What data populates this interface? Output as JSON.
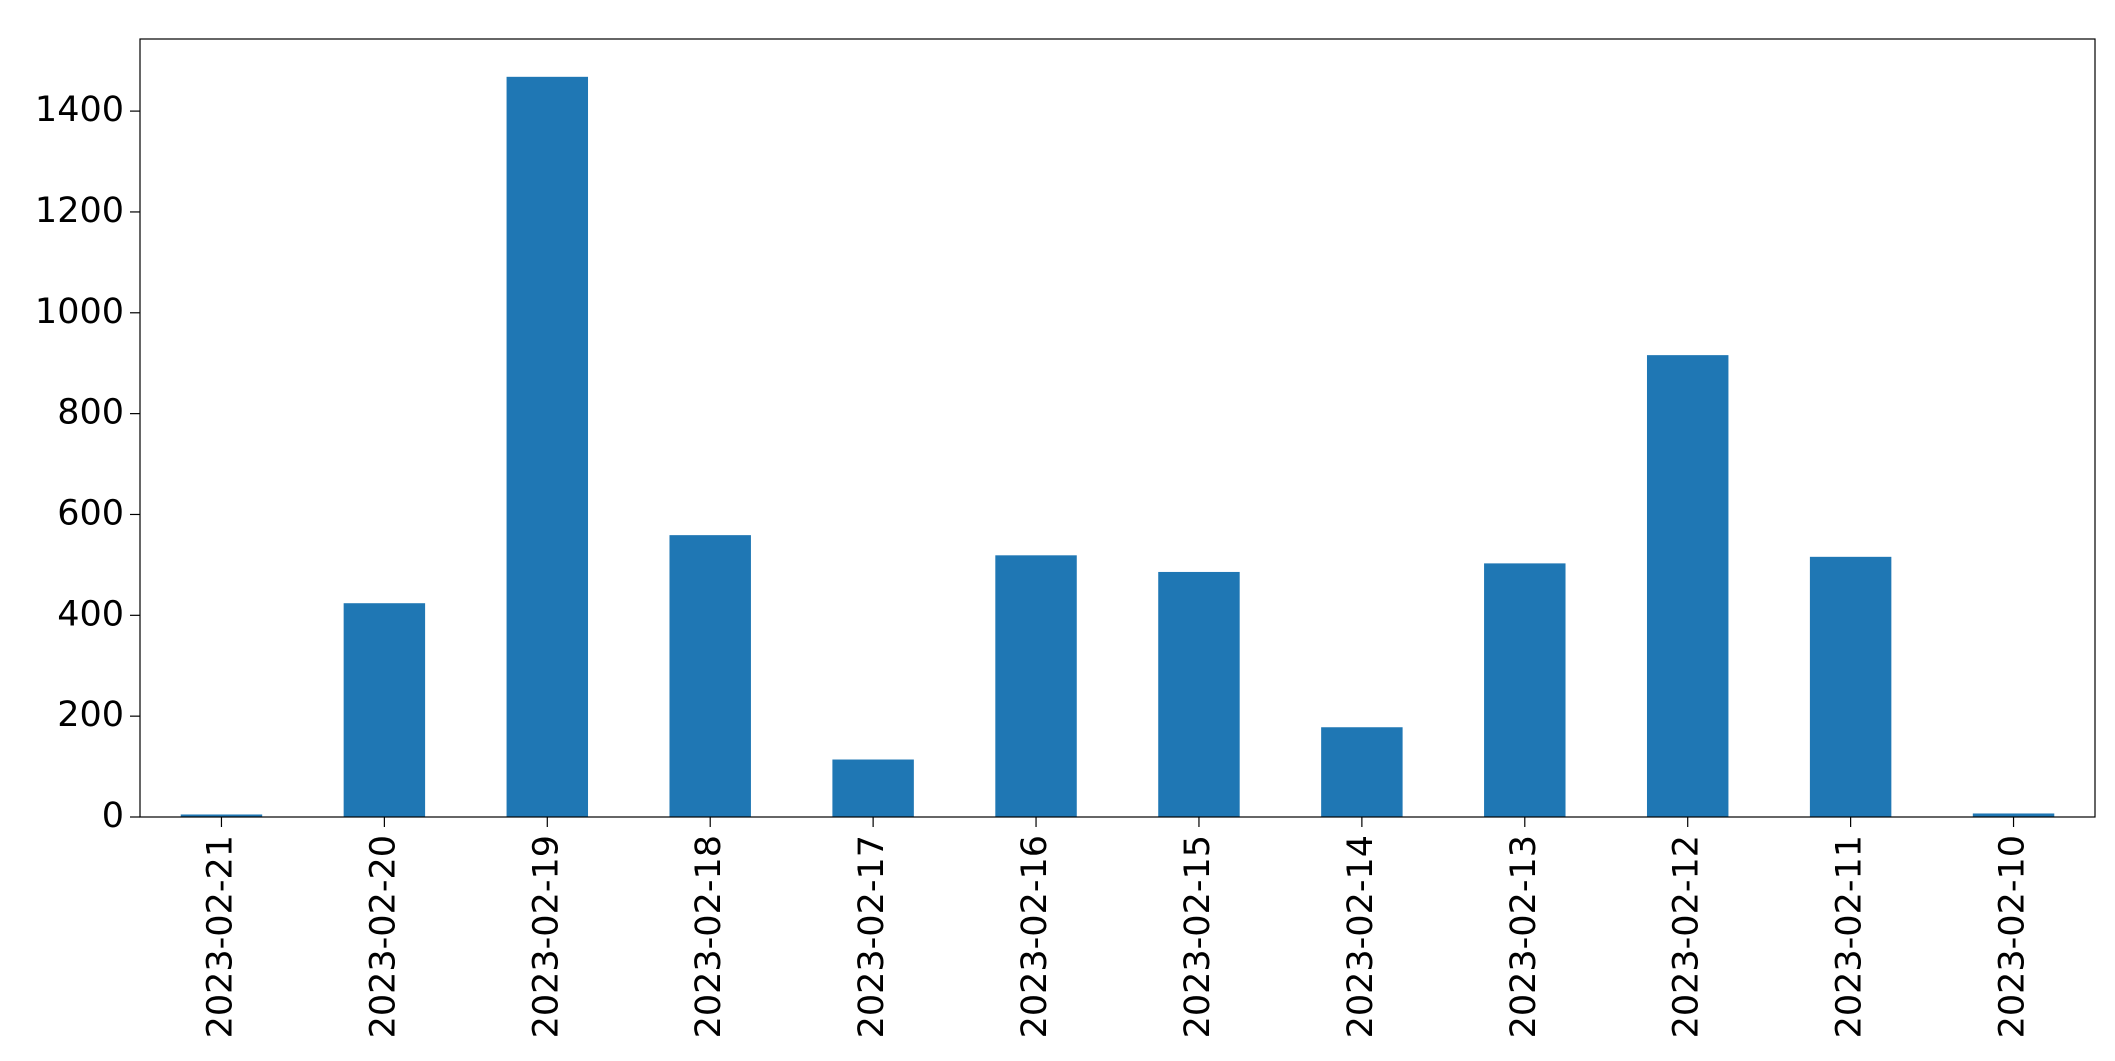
{
  "chart_data": {
    "type": "bar",
    "categories": [
      "2023-02-21",
      "2023-02-20",
      "2023-02-19",
      "2023-02-18",
      "2023-02-17",
      "2023-02-16",
      "2023-02-15",
      "2023-02-14",
      "2023-02-13",
      "2023-02-12",
      "2023-02-11",
      "2023-02-10"
    ],
    "values": [
      5,
      424,
      1468,
      559,
      114,
      519,
      486,
      178,
      503,
      916,
      516,
      7
    ],
    "color": "#1f77b4",
    "ylim": [
      0,
      1543
    ],
    "yticks": [
      0,
      200,
      400,
      600,
      800,
      1000,
      1200,
      1400
    ],
    "grid": false
  }
}
